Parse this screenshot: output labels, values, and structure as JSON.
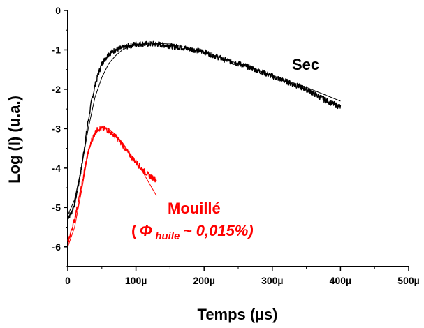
{
  "chart_data": {
    "type": "line",
    "xlabel": "Temps (µs)",
    "ylabel": "Log (I) (u.a.)",
    "xlim": [
      0,
      500
    ],
    "ylim": [
      -6.5,
      0
    ],
    "x_ticks": [
      {
        "value": 0,
        "label": "0"
      },
      {
        "value": 100,
        "label": "100µ"
      },
      {
        "value": 200,
        "label": "200µ"
      },
      {
        "value": 300,
        "label": "300µ"
      },
      {
        "value": 400,
        "label": "400µ"
      },
      {
        "value": 500,
        "label": "500µ"
      }
    ],
    "y_ticks": [
      {
        "value": 0,
        "label": "0"
      },
      {
        "value": -1,
        "label": "-1"
      },
      {
        "value": -2,
        "label": "-2"
      },
      {
        "value": -3,
        "label": "-3"
      },
      {
        "value": -4,
        "label": "-4"
      },
      {
        "value": -5,
        "label": "-5"
      },
      {
        "value": -6,
        "label": "-6"
      }
    ],
    "series": [
      {
        "color": "#000000",
        "x": [
          0,
          5,
          10,
          15,
          20,
          25,
          30,
          35,
          40,
          45,
          50,
          60,
          70,
          80,
          90,
          100,
          110,
          120,
          130,
          150,
          170,
          200,
          230,
          260,
          290,
          320,
          350,
          380,
          400
        ],
        "y": [
          -5.25,
          -5.15,
          -4.9,
          -4.5,
          -4.0,
          -3.4,
          -2.8,
          -2.3,
          -1.9,
          -1.6,
          -1.35,
          -1.1,
          -1.0,
          -0.95,
          -0.9,
          -0.85,
          -0.85,
          -0.85,
          -0.85,
          -0.9,
          -0.95,
          -1.05,
          -1.25,
          -1.4,
          -1.6,
          -1.8,
          -2.0,
          -2.3,
          -2.45
        ],
        "fit": {
          "x": [
            0,
            10,
            20,
            30,
            40,
            50,
            60,
            70,
            80,
            90,
            100,
            120,
            150,
            200,
            250,
            300,
            350,
            400
          ],
          "y": [
            -5.2,
            -4.8,
            -4.0,
            -3.0,
            -2.2,
            -1.7,
            -1.35,
            -1.15,
            -1.0,
            -0.92,
            -0.87,
            -0.83,
            -0.85,
            -1.05,
            -1.35,
            -1.65,
            -1.95,
            -2.3
          ]
        }
      },
      {
        "color": "#ff0000",
        "x": [
          0,
          5,
          10,
          15,
          20,
          25,
          30,
          35,
          40,
          45,
          50,
          55,
          60,
          70,
          80,
          90,
          100,
          110,
          120,
          130
        ],
        "y": [
          -5.9,
          -5.6,
          -5.3,
          -4.9,
          -4.5,
          -4.0,
          -3.6,
          -3.3,
          -3.1,
          -3.0,
          -3.0,
          -3.0,
          -3.05,
          -3.2,
          -3.4,
          -3.65,
          -3.85,
          -4.05,
          -4.2,
          -4.3
        ],
        "fit": {
          "x": [
            0,
            10,
            20,
            30,
            40,
            50,
            60,
            70,
            80,
            90,
            100,
            110,
            120,
            130
          ],
          "y": [
            -6.0,
            -5.5,
            -4.6,
            -3.6,
            -3.1,
            -2.98,
            -3.0,
            -3.15,
            -3.35,
            -3.6,
            -3.85,
            -4.1,
            -4.4,
            -4.7
          ]
        }
      }
    ],
    "annotations": {
      "sec": "Sec",
      "mouille": "Mouillé",
      "open_paren": "(",
      "phi": "Φ",
      "sub": "huile",
      "rest": "~ 0,015%)"
    }
  }
}
